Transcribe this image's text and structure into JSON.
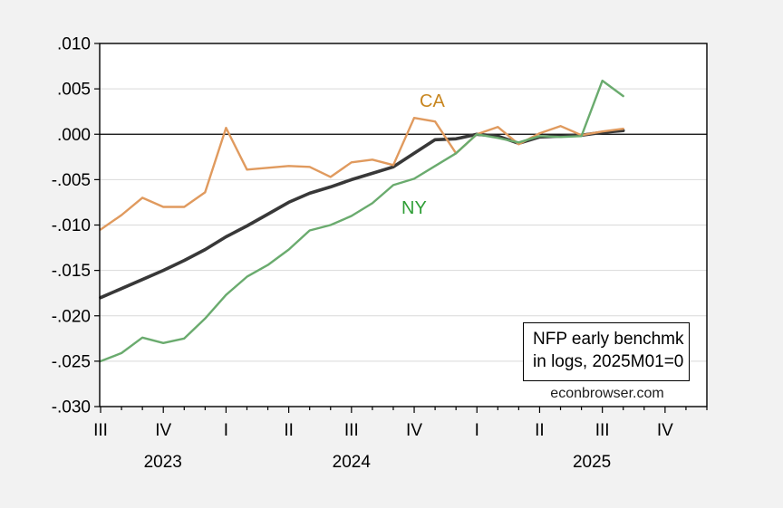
{
  "chart_data": {
    "type": "line",
    "title": "",
    "xlabel": "",
    "ylabel": "",
    "grid": "horizontal",
    "legend_position": "none (inline text labels)",
    "background_color": "#f2f2f2",
    "plot_background_color": "#ffffff",
    "gridline_color": "#d9d9d9",
    "zero_line_color": "#000000",
    "ylim": [
      -0.03,
      0.01
    ],
    "y_tick_values": [
      0.01,
      0.005,
      0.0,
      -0.005,
      -0.01,
      -0.015,
      -0.02,
      -0.025,
      -0.03
    ],
    "y_tick_labels": [
      ".010",
      ".005",
      ".000",
      "-.005",
      "-.010",
      "-.015",
      "-.020",
      "-.025",
      "-.030"
    ],
    "x_months": [
      "2023M07",
      "2023M08",
      "2023M09",
      "2023M10",
      "2023M11",
      "2023M12",
      "2024M01",
      "2024M02",
      "2024M03",
      "2024M04",
      "2024M05",
      "2024M06",
      "2024M07",
      "2024M08",
      "2024M09",
      "2024M10",
      "2024M11",
      "2024M12",
      "2025M01",
      "2025M02",
      "2025M03",
      "2025M04",
      "2025M05",
      "2025M06",
      "2025M07",
      "2025M08"
    ],
    "x_axis_total_months": 30,
    "quarter_ticks": [
      {
        "month_index": 0,
        "label": "III"
      },
      {
        "month_index": 3,
        "label": "IV"
      },
      {
        "month_index": 6,
        "label": "I"
      },
      {
        "month_index": 9,
        "label": "II"
      },
      {
        "month_index": 12,
        "label": "III"
      },
      {
        "month_index": 15,
        "label": "IV"
      },
      {
        "month_index": 18,
        "label": "I"
      },
      {
        "month_index": 21,
        "label": "II"
      },
      {
        "month_index": 24,
        "label": "III"
      },
      {
        "month_index": 27,
        "label": "IV"
      }
    ],
    "year_labels": [
      {
        "label": "2023",
        "start_month": 0,
        "end_month": 6
      },
      {
        "label": "2024",
        "start_month": 6,
        "end_month": 18
      },
      {
        "label": "2025",
        "start_month": 18,
        "end_month": 29
      }
    ],
    "series": [
      {
        "name": "",
        "semantic": "unlabeled-black-line",
        "color": "#383838",
        "stroke_width": 3.6,
        "values": [
          -0.018,
          -0.017,
          -0.016,
          -0.015,
          -0.0139,
          -0.0127,
          -0.0113,
          -0.0101,
          -0.0088,
          -0.0075,
          -0.0065,
          -0.0058,
          -0.005,
          -0.0043,
          -0.0036,
          -0.0021,
          -0.0006,
          -0.0005,
          0.0,
          -0.0002,
          -0.001,
          -0.0003,
          -0.0002,
          -0.0001,
          0.0002,
          0.0004
        ]
      },
      {
        "name": "CA",
        "semantic": "california-line",
        "color": "#e09a5e",
        "stroke_width": 2.4,
        "values": [
          -0.0105,
          -0.0089,
          -0.007,
          -0.008,
          -0.008,
          -0.0064,
          0.0007,
          -0.0039,
          -0.0037,
          -0.0035,
          -0.0036,
          -0.0047,
          -0.0031,
          -0.0028,
          -0.0034,
          0.0018,
          0.0014,
          -0.0021,
          0.0,
          0.0008,
          -0.0011,
          0.0001,
          0.0009,
          -0.0001,
          0.0003,
          0.0006
        ]
      },
      {
        "name": "NY",
        "semantic": "newyork-line",
        "color": "#6aab6e",
        "stroke_width": 2.4,
        "values": [
          -0.025,
          -0.0241,
          -0.0224,
          -0.023,
          -0.0225,
          -0.0203,
          -0.0177,
          -0.0157,
          -0.0144,
          -0.0127,
          -0.0106,
          -0.01,
          -0.009,
          -0.0076,
          -0.0056,
          -0.0049,
          -0.0035,
          -0.0021,
          0.0,
          -0.0004,
          -0.0009,
          -0.0002,
          -0.0003,
          -0.0002,
          0.0059,
          0.0042
        ]
      }
    ],
    "annotations": {
      "ca_label": "CA",
      "ny_label": "NY",
      "note_line1": "NFP early benchmk",
      "note_line2": "in logs, 2025M01=0",
      "watermark": "econbrowser.com"
    }
  }
}
